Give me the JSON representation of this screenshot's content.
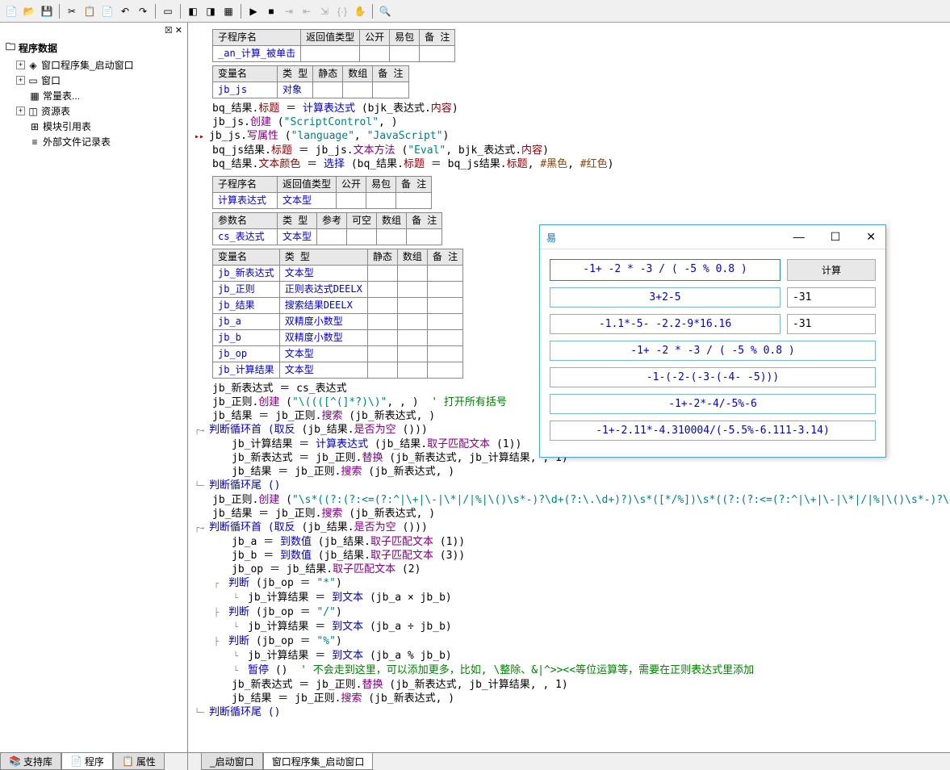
{
  "tree": {
    "root": "程序数据",
    "items": [
      {
        "exp": "+",
        "ico": "◈",
        "label": "窗口程序集_启动窗口"
      },
      {
        "exp": "+",
        "ico": "▭",
        "label": "窗口"
      },
      {
        "exp": "",
        "ico": "▦",
        "label": "常量表..."
      },
      {
        "exp": "+",
        "ico": "◫",
        "label": "资源表"
      },
      {
        "exp": "",
        "ico": "⊞",
        "label": "模块引用表"
      },
      {
        "exp": "",
        "ico": "≡",
        "label": "外部文件记录表"
      }
    ]
  },
  "sub1": {
    "headers": [
      "子程序名",
      "返回值类型",
      "公开",
      "易包",
      "备 注"
    ],
    "row": [
      "_an_计算_被单击",
      "",
      "",
      "",
      ""
    ]
  },
  "var1": {
    "headers": [
      "变量名",
      "类 型",
      "静态",
      "数组",
      "备 注"
    ],
    "row": [
      "jb_js",
      "对象",
      "",
      "",
      ""
    ]
  },
  "code1": [
    "bq_结果.标题 ＝ 计算表达式 (bjk_表达式.内容)",
    "jb_js.创建 (\"ScriptControl\", )",
    "jb_js.写属性 (\"language\", \"JavaScript\")",
    "bq_js结果.标题 ＝ jb_js.文本方法 (\"Eval\", bjk_表达式.内容)",
    "bq_结果.文本颜色 ＝ 选择 (bq_结果.标题 ＝ bq_js结果.标题, #黑色, #红色)"
  ],
  "sub2": {
    "headers": [
      "子程序名",
      "返回值类型",
      "公开",
      "易包",
      "备 注"
    ],
    "rows": [
      [
        "计算表达式",
        "文本型",
        "",
        "",
        ""
      ]
    ]
  },
  "param2": {
    "headers": [
      "参数名",
      "类 型",
      "参考",
      "可空",
      "数组",
      "备 注"
    ],
    "rows": [
      [
        "cs_表达式",
        "文本型",
        "",
        "",
        "",
        ""
      ]
    ]
  },
  "var2": {
    "headers": [
      "变量名",
      "类 型",
      "静态",
      "数组",
      "备 注"
    ],
    "rows": [
      [
        "jb_新表达式",
        "文本型"
      ],
      [
        "jb_正则",
        "正则表达式DEELX"
      ],
      [
        "jb_结果",
        "搜索结果DEELX"
      ],
      [
        "jb_a",
        "双精度小数型"
      ],
      [
        "jb_b",
        "双精度小数型"
      ],
      [
        "jb_op",
        "文本型"
      ],
      [
        "jb_计算结果",
        "文本型"
      ]
    ]
  },
  "code2": {
    "l1": "jb_新表达式 ＝ cs_表达式",
    "l2a": "jb_正则.创建 (",
    "l2b": "\"\\((([^(]*?)\\)\"",
    "l2c": ", , )  ",
    "l2d": "' 打开所有括号",
    "l3": "jb_结果 ＝ jb_正则.搜索 (jb_新表达式, )",
    "l4a": "判断循环首 (",
    "l4b": "取反",
    "l4c": " (jb_结果.",
    "l4d": "是否为空",
    "l4e": " ()))",
    "l5": "jb_计算结果 ＝ 计算表达式 (jb_结果.取子匹配文本 (1))",
    "l6": "jb_新表达式 ＝ jb_正则.替换 (jb_新表达式, jb_计算结果, , 1)",
    "l7": "jb_结果 ＝ jb_正则.搜索 (jb_新表达式, )",
    "l8": "判断循环尾 ()",
    "l9a": "jb_正则.创建 (",
    "l9b": "\"\\s*((?:(?:<=(?:^|\\+|\\-|\\*|/|%|\\()\\s*-)?\\d+(?:\\.\\d+)?)\\s*([*/%])\\s*((?:(?:<=(?:^|\\+|\\-|\\*|/|%|\\()\\s*-)?\\d+(?:\\.\\d+)?)\\s*\"",
    "l9c": ", , )",
    "l10": "jb_结果 ＝ jb_正则.搜索 (jb_新表达式, )",
    "l11a": "判断循环首 (",
    "l11b": "取反",
    "l11c": " (jb_结果.",
    "l11d": "是否为空",
    "l11e": " ()))",
    "l12": "jb_a ＝ 到数值 (jb_结果.取子匹配文本 (1))",
    "l13": "jb_b ＝ 到数值 (jb_结果.取子匹配文本 (3))",
    "l14": "jb_op ＝ jb_结果.取子匹配文本 (2)",
    "l15a": "判断",
    "l15b": " (jb_op ＝ ",
    "l15c": "\"*\"",
    "l15d": ")",
    "l16": "jb_计算结果 ＝ 到文本 (jb_a × jb_b)",
    "l17a": "判断",
    "l17b": " (jb_op ＝ ",
    "l17c": "\"/\"",
    "l17d": ")",
    "l18": "jb_计算结果 ＝ 到文本 (jb_a ÷ jb_b)",
    "l19a": "判断",
    "l19b": " (jb_op ＝ ",
    "l19c": "\"%\"",
    "l19d": ")",
    "l20": "jb_计算结果 ＝ 到文本 (jb_a % jb_b)",
    "l21a": "暂停 ()  ",
    "l21b": "' 不会走到这里，可以添加更多，比如, \\整除、&|^>><<等位运算等，需要在正则表达式里添加",
    "l22": "jb_新表达式 ＝ jb_正则.替换 (jb_新表达式, jb_计算结果, , 1)",
    "l23": "jb_结果 ＝ jb_正则.搜索 (jb_新表达式, )",
    "l24": "判断循环尾 ()"
  },
  "calc": {
    "input": "-1+ -2 * -3 /  (   -5 % 0.8  )",
    "btn": "计算",
    "rows": [
      {
        "expr": "3+2-5",
        "res": "-31"
      },
      {
        "expr": "-1.1*-5- -2.2-9*16.16",
        "res": "-31"
      }
    ],
    "more": [
      "-1+ -2 * -3 /  (   -5 % 0.8  )",
      "-1-(-2-(-3-(-4- -5)))",
      "-1+-2*-4/-5%-6",
      "-1+-2.11*-4.310004/(-5.5%-6.111-3.14)"
    ]
  },
  "ltabs": [
    {
      "ico": "📚",
      "label": "支持库"
    },
    {
      "ico": "📄",
      "label": "程序",
      "active": true
    },
    {
      "ico": "📋",
      "label": "属性"
    }
  ],
  "rtabs": [
    {
      "label": "_启动窗口"
    },
    {
      "label": "窗口程序集_启动窗口",
      "active": true
    }
  ]
}
